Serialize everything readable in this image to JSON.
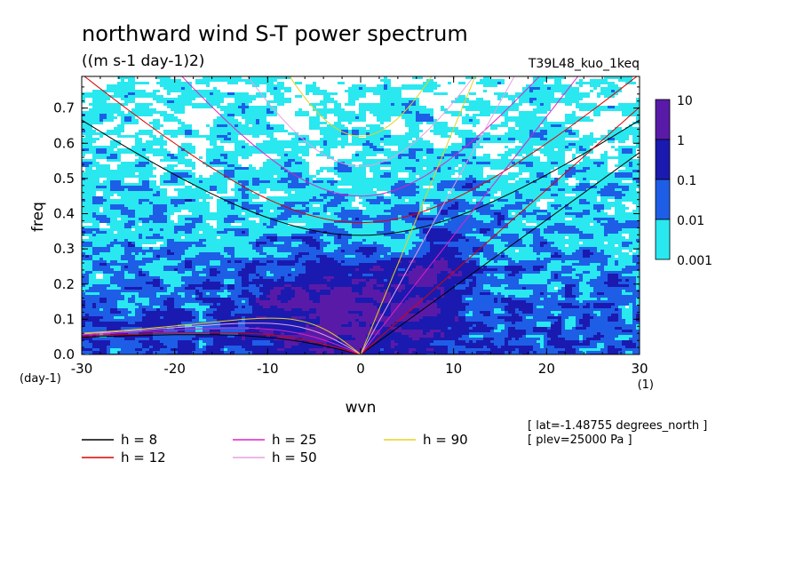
{
  "chart_data": {
    "type": "heatmap",
    "title": "northward wind S-T power spectrum",
    "units": "((m s-1 day-1)2)",
    "run_label": "T39L48_kuo_1keq",
    "xlabel": "wvn",
    "ylabel": "freq",
    "x_unit": "(1)",
    "y_unit": "(day-1)",
    "xlim": [
      -30,
      30
    ],
    "ylim": [
      0,
      0.79
    ],
    "x_ticks": [
      "-30",
      "-20",
      "-10",
      "0",
      "10",
      "20",
      "30"
    ],
    "y_ticks": [
      "0.0",
      "0.1",
      "0.2",
      "0.3",
      "0.4",
      "0.5",
      "0.6",
      "0.7"
    ],
    "colorbar": {
      "levels": [
        "10",
        "1",
        "0.1",
        "0.01",
        "0.001"
      ],
      "colors": [
        "#5a1aa8",
        "#1a1ab0",
        "#1e5ee6",
        "#29e8f0"
      ]
    },
    "dispersion_curves": [
      {
        "label": "h =  8",
        "h": 8,
        "color": "#000000"
      },
      {
        "label": "h = 12",
        "h": 12,
        "color": "#e00000"
      },
      {
        "label": "h = 25",
        "h": 25,
        "color": "#e020c8"
      },
      {
        "label": "h = 50",
        "h": 50,
        "color": "#e8a0e0"
      },
      {
        "label": "h = 90",
        "h": 90,
        "color": "#e8d020"
      }
    ],
    "info_lines": [
      "[ lat=-1.48755 degrees_north ]",
      "[ plev=25000 Pa ]"
    ]
  }
}
